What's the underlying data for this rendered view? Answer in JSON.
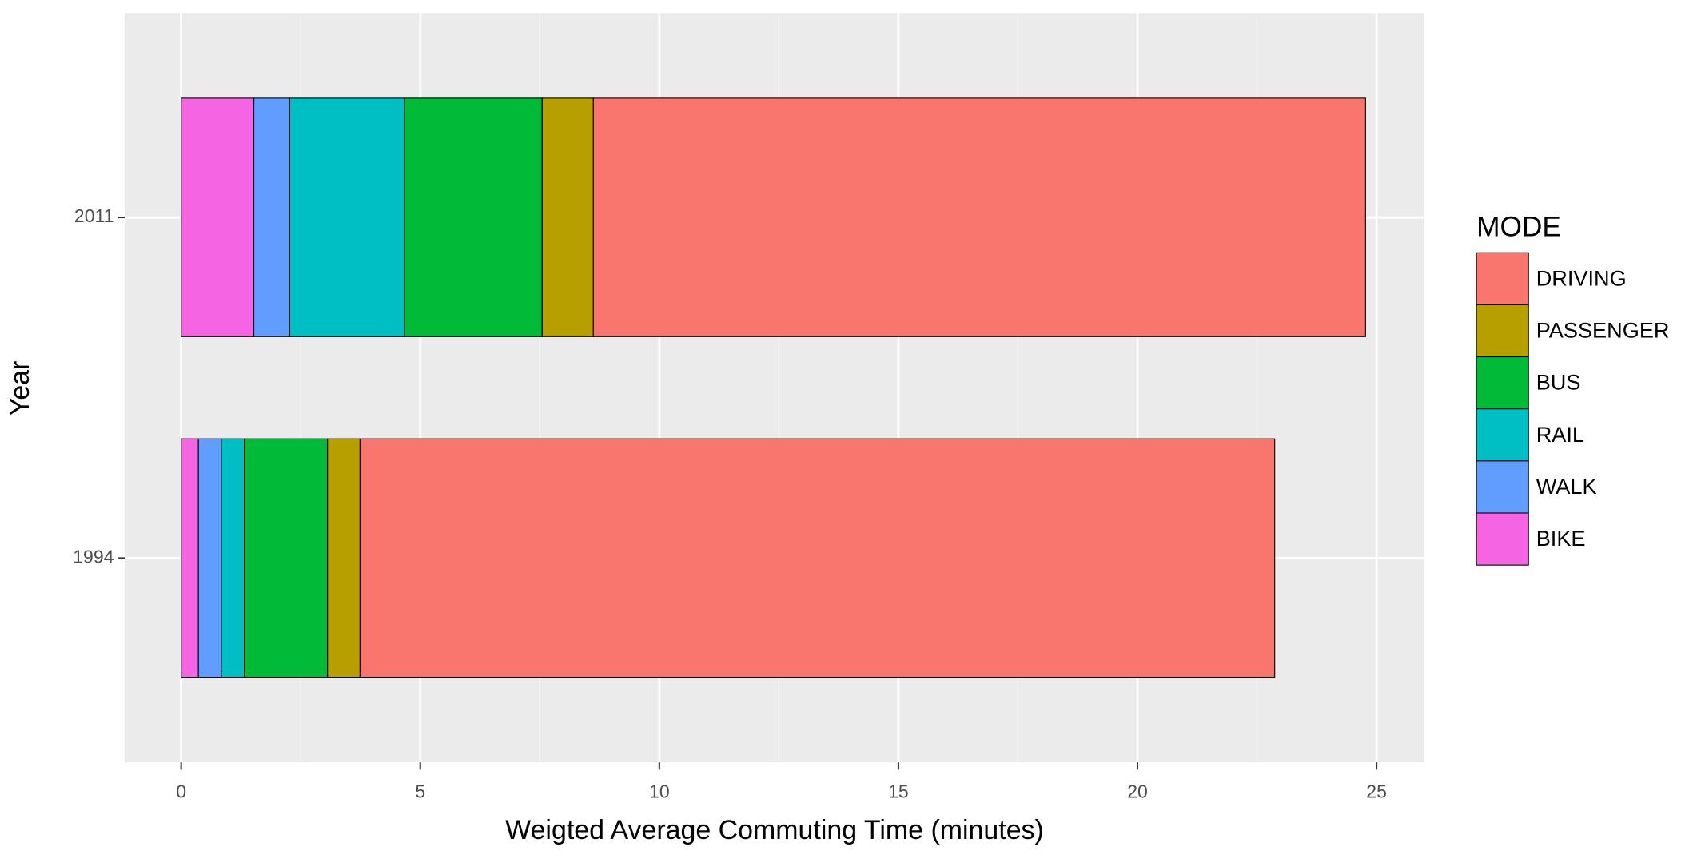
{
  "chart_data": {
    "type": "stacked-barh",
    "x_label": "Weigted Average Commuting Time (minutes)",
    "y_label": "Year",
    "legend_title": "MODE",
    "categories": [
      "1994",
      "2011"
    ],
    "series": [
      {
        "name": "DRIVING",
        "color": "#F8766D",
        "values": [
          19.13,
          16.15
        ]
      },
      {
        "name": "PASSENGER",
        "color": "#B79F00",
        "values": [
          0.68,
          1.07
        ]
      },
      {
        "name": "BUS",
        "color": "#00BA38",
        "values": [
          1.74,
          2.88
        ]
      },
      {
        "name": "RAIL",
        "color": "#00BFC4",
        "values": [
          0.48,
          2.4
        ]
      },
      {
        "name": "WALK",
        "color": "#619CFF",
        "values": [
          0.48,
          0.75
        ]
      },
      {
        "name": "BIKE",
        "color": "#F564E3",
        "values": [
          0.36,
          1.52
        ]
      }
    ],
    "xlim": [
      -1.18,
      26.0
    ],
    "xticks": [
      0,
      5,
      10,
      15,
      20,
      25
    ],
    "grid": true,
    "legend": "right"
  }
}
